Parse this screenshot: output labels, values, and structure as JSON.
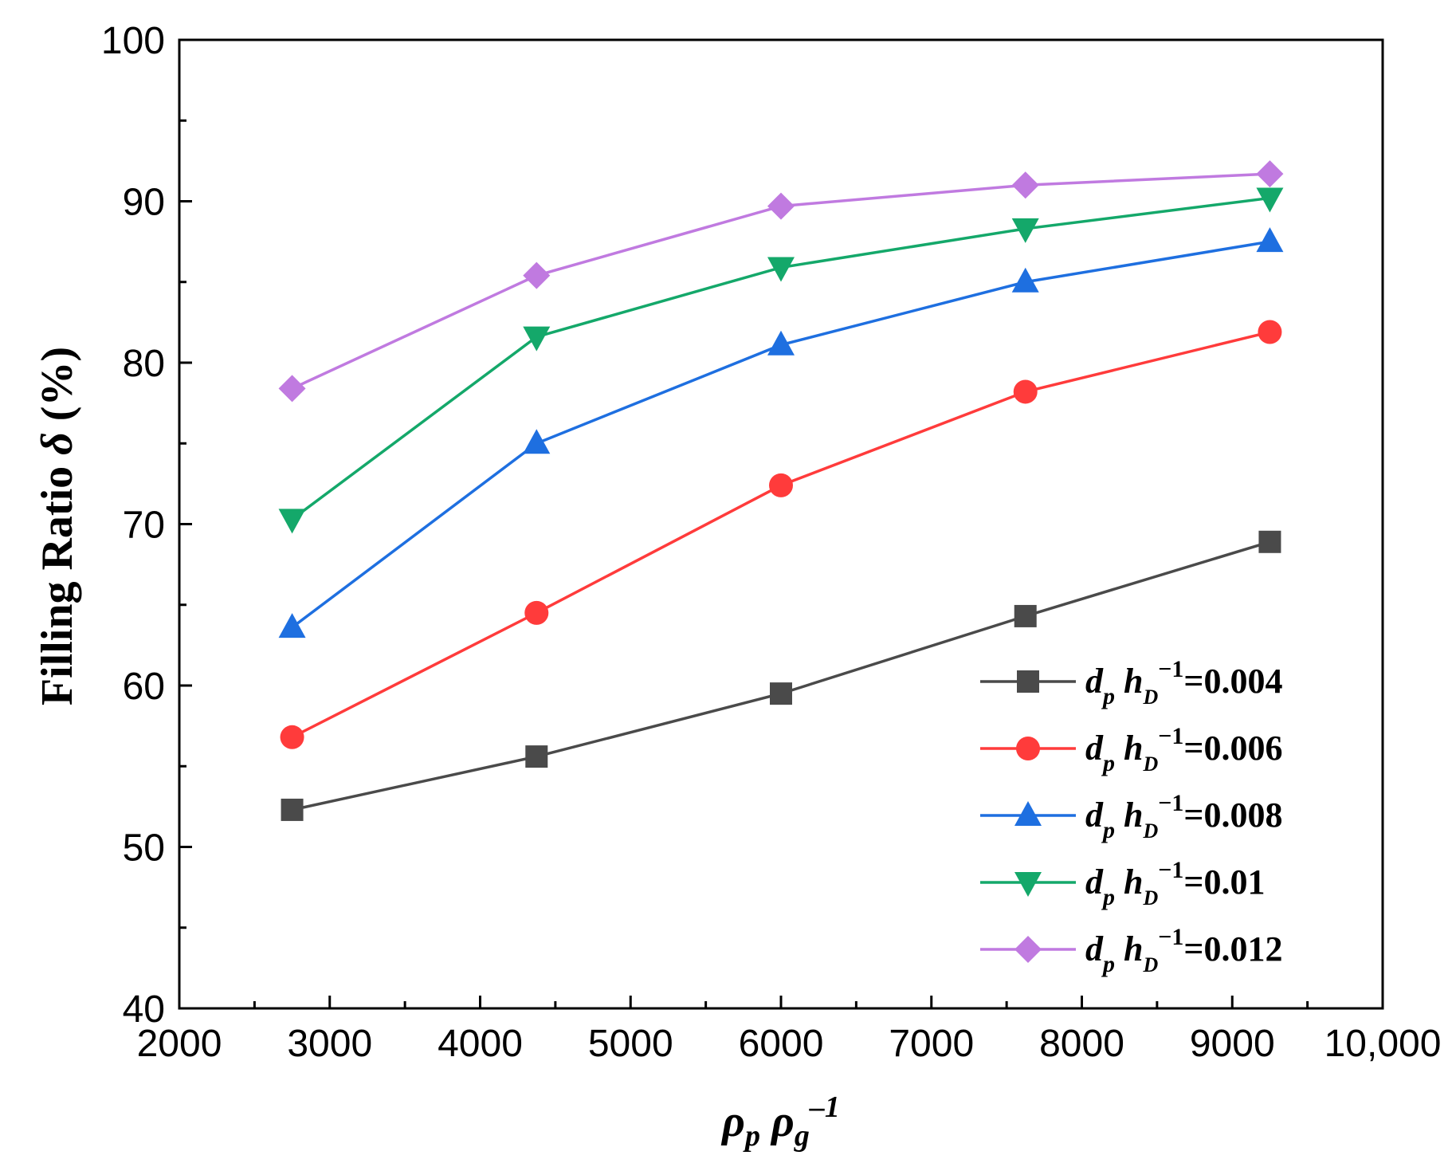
{
  "chart_data": {
    "type": "line",
    "title": "",
    "xlabel": {
      "main": "ρ",
      "sub1": "p",
      "mid": " ρ",
      "sub2": "g",
      "sup": "–1"
    },
    "ylabel": {
      "prefix": "Filling Ratio ",
      "symbol": "δ",
      "suffix": " (%)"
    },
    "xlim": [
      2000,
      10000
    ],
    "ylim": [
      40,
      100
    ],
    "xticks": [
      2000,
      3000,
      4000,
      5000,
      6000,
      7000,
      8000,
      9000,
      10000
    ],
    "xtick_labels": [
      "2000",
      "3000",
      "4000",
      "5000",
      "6000",
      "7000",
      "8000",
      "9000",
      "10,000"
    ],
    "yticks": [
      40,
      50,
      60,
      70,
      80,
      90,
      100
    ],
    "ytick_labels": [
      "40",
      "50",
      "60",
      "70",
      "80",
      "90",
      "100"
    ],
    "grid": false,
    "legend_position": "bottom-right",
    "x": [
      2750,
      4375,
      6000,
      7625,
      9250
    ],
    "series": [
      {
        "name": "dp hD−1=0.004",
        "var1": "d",
        "sub1": "p",
        "var2": " h",
        "sub2": "D",
        "sup": "−1",
        "value": "=0.004",
        "color": "#4a4a4a",
        "marker": "square",
        "values": [
          52.3,
          55.6,
          59.5,
          64.3,
          68.9
        ]
      },
      {
        "name": "dp hD−1=0.006",
        "var1": "d",
        "sub1": "p",
        "var2": " h",
        "sub2": "D",
        "sup": "−1",
        "value": "=0.006",
        "color": "#ff3b3b",
        "marker": "circle",
        "values": [
          56.8,
          64.5,
          72.4,
          78.2,
          81.9
        ]
      },
      {
        "name": "dp hD−1=0.008",
        "var1": "d",
        "sub1": "p",
        "var2": " h",
        "sub2": "D",
        "sup": "−1",
        "value": "=0.008",
        "color": "#1e6fe0",
        "marker": "triangle-up",
        "values": [
          63.6,
          75.0,
          81.1,
          85.0,
          87.5
        ]
      },
      {
        "name": "dp hD−1=0.01",
        "var1": "d",
        "sub1": "p",
        "var2": " h",
        "sub2": "D",
        "sup": "−1",
        "value": "=0.01",
        "color": "#14a86a",
        "marker": "triangle-down",
        "values": [
          70.3,
          81.6,
          85.9,
          88.3,
          90.2
        ]
      },
      {
        "name": "dp hD−1=0.012",
        "var1": "d",
        "sub1": "p",
        "var2": " h",
        "sub2": "D",
        "sup": "−1",
        "value": "=0.012",
        "color": "#c07ae0",
        "marker": "diamond",
        "values": [
          78.4,
          85.4,
          89.7,
          91.0,
          91.7
        ]
      }
    ]
  }
}
